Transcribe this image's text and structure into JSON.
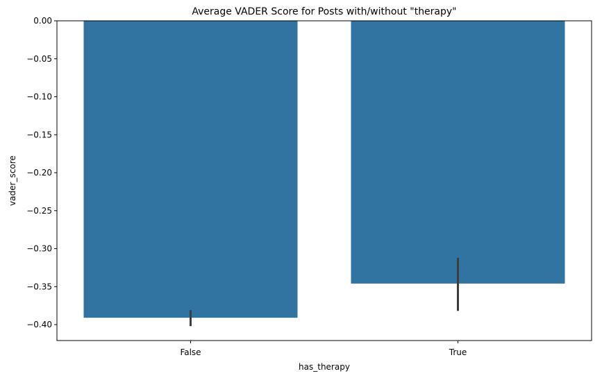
{
  "chart_data": {
    "type": "bar",
    "title": "Average VADER Score for Posts with/without \"therapy\"",
    "xlabel": "has_therapy",
    "ylabel": "vader_score",
    "categories": [
      "False",
      "True"
    ],
    "values": [
      -0.391,
      -0.346
    ],
    "error_bars": [
      {
        "low": -0.402,
        "high": -0.381
      },
      {
        "low": -0.382,
        "high": -0.312
      }
    ],
    "ylim": [
      -0.421,
      0.0
    ],
    "yticks": [
      0.0,
      -0.05,
      -0.1,
      -0.15,
      -0.2,
      -0.25,
      -0.3,
      -0.35,
      -0.4
    ],
    "ytick_labels": [
      "0.00",
      "−0.05",
      "−0.10",
      "−0.15",
      "−0.20",
      "−0.25",
      "−0.30",
      "−0.35",
      "−0.40"
    ],
    "grid": false,
    "colors": {
      "bar": "#3274a1",
      "error_bar": "#3d3d3d"
    }
  }
}
